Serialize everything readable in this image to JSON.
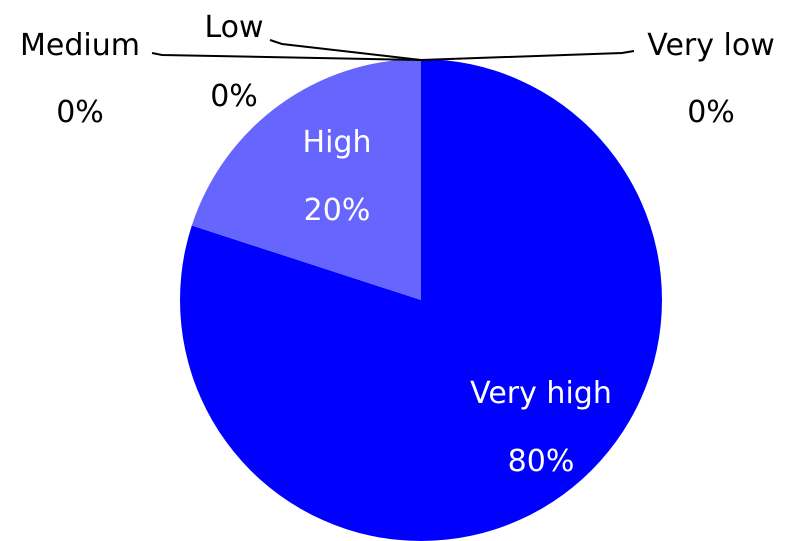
{
  "chart_data": {
    "type": "pie",
    "categories": [
      "Very high",
      "High",
      "Medium",
      "Low",
      "Very low"
    ],
    "values": [
      80,
      20,
      0,
      0,
      0
    ],
    "value_labels": [
      "80%",
      "20%",
      "0%",
      "0%",
      "0%"
    ],
    "colors": [
      "#0000ff",
      "#6666ff",
      "#9999ff",
      "#bbbbff",
      "#ddddff"
    ],
    "start": "12 o'clock, clockwise",
    "legend": "none"
  }
}
